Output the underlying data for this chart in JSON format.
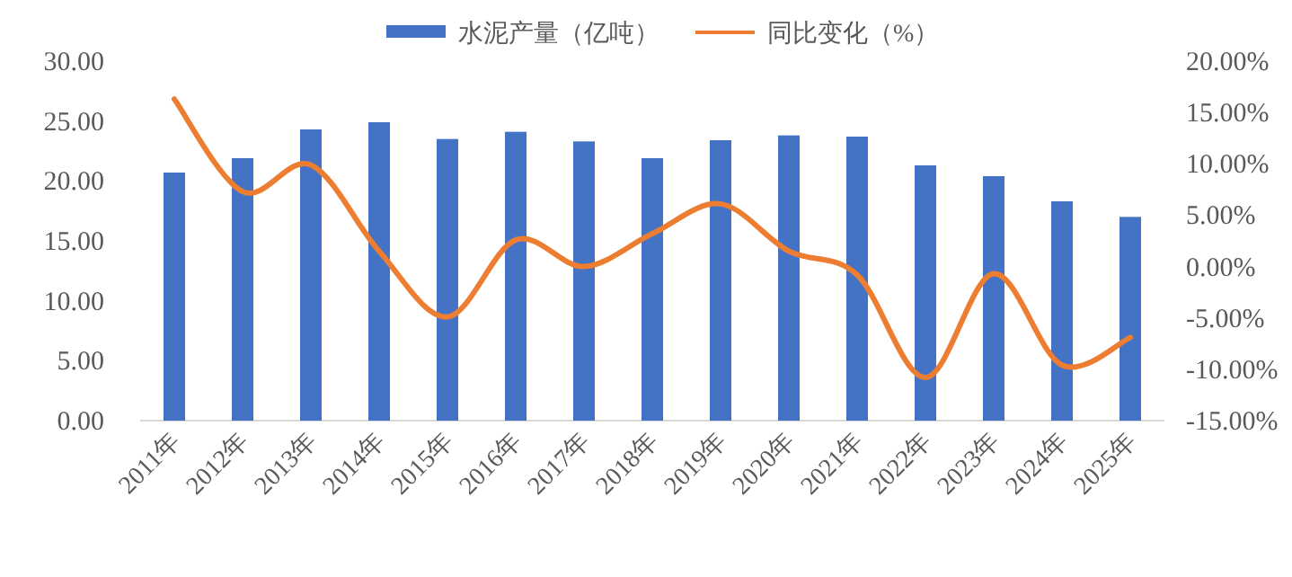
{
  "chart_data": {
    "type": "bar",
    "categories": [
      "2011年",
      "2012年",
      "2013年",
      "2014年",
      "2015年",
      "2016年",
      "2017年",
      "2018年",
      "2019年",
      "2020年",
      "2021年",
      "2022年",
      "2023年",
      "2024年",
      "2025年"
    ],
    "series": [
      {
        "name": "水泥产量（亿吨）",
        "color": "#4472c4",
        "values": [
          20.7,
          21.9,
          24.3,
          24.9,
          23.5,
          24.1,
          23.3,
          21.9,
          23.4,
          23.8,
          23.7,
          21.3,
          20.4,
          18.3,
          17.0
        ]
      },
      {
        "name": "同比变化（%）",
        "type": "line",
        "axis": "y2",
        "color": "#ed7d31",
        "values": [
          16.3,
          7.3,
          9.9,
          1.5,
          -4.9,
          2.6,
          0.0,
          3.2,
          6.1,
          1.5,
          -0.8,
          -10.8,
          -0.7,
          -9.6,
          -6.9
        ]
      }
    ],
    "ylim": [
      0,
      30
    ],
    "yticks": [
      {
        "value": 0,
        "label": "0.00"
      },
      {
        "value": 5,
        "label": "5.00"
      },
      {
        "value": 10,
        "label": "10.00"
      },
      {
        "value": 15,
        "label": "15.00"
      },
      {
        "value": 20,
        "label": "20.00"
      },
      {
        "value": 25,
        "label": "25.00"
      },
      {
        "value": 30,
        "label": "30.00"
      }
    ],
    "y2lim": [
      -15,
      20
    ],
    "y2ticks": [
      {
        "value": -15,
        "label": "-15.00%"
      },
      {
        "value": -10,
        "label": "-10.00%"
      },
      {
        "value": -5,
        "label": "-5.00%"
      },
      {
        "value": 0,
        "label": "0.00%"
      },
      {
        "value": 5,
        "label": "5.00%"
      },
      {
        "value": 10,
        "label": "10.00%"
      },
      {
        "value": 15,
        "label": "15.00%"
      },
      {
        "value": 20,
        "label": "20.00%"
      }
    ],
    "legend": "top"
  }
}
